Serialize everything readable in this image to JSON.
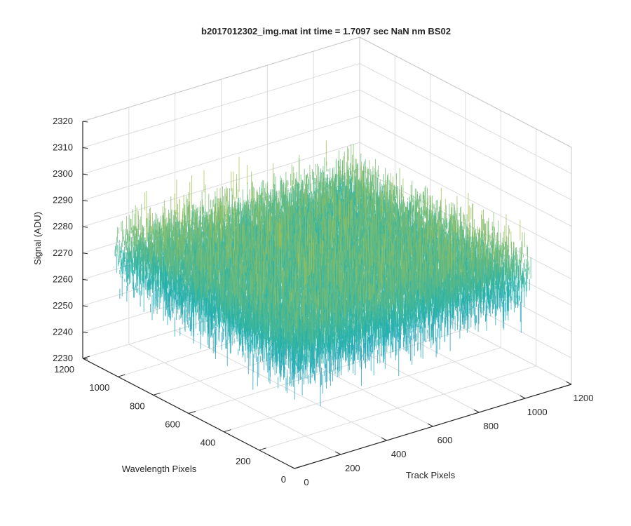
{
  "chart_data": {
    "type": "surface",
    "title": "b2017012302_img.mat int time = 1.7097 sec  NaN nm BS02",
    "xlabel": "Track Pixels",
    "ylabel": "Wavelength Pixels",
    "zlabel": "Signal (ADU)",
    "xlim": [
      0,
      1200
    ],
    "ylim": [
      0,
      1200
    ],
    "zlim": [
      2230,
      2320
    ],
    "x_ticks": [
      "0",
      "200",
      "400",
      "600",
      "800",
      "1000",
      "1200"
    ],
    "y_ticks": [
      "0",
      "200",
      "400",
      "600",
      "800",
      "1000",
      "1200"
    ],
    "z_ticks": [
      "2230",
      "2240",
      "2250",
      "2260",
      "2270",
      "2280",
      "2290",
      "2300",
      "2310",
      "2320"
    ],
    "grid": true,
    "colormap": "parula",
    "surface_extent": {
      "x": [
        0,
        1024
      ],
      "y": [
        0,
        1024
      ]
    },
    "signal_mean": 2273,
    "signal_noise_range": [
      2235,
      2310
    ],
    "colors": {
      "low": "#1c8fd8",
      "mid": "#27b3a8",
      "high": "#d9c535",
      "axis": "#262626",
      "grid": "#dcdcdc"
    }
  }
}
